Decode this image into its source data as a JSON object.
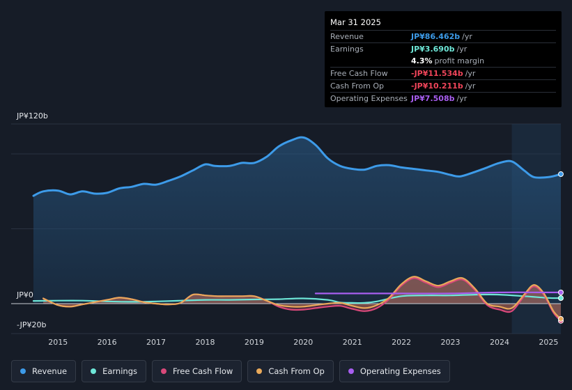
{
  "tooltip": {
    "date": "Mar 31 2025",
    "rows": [
      {
        "label": "Revenue",
        "value": "JP¥86.462b",
        "unit": "/yr",
        "color": "#3d9be9"
      },
      {
        "label": "Earnings",
        "value": "JP¥3.690b",
        "unit": "/yr",
        "color": "#6ee7d8"
      },
      {
        "label": "",
        "value": "4.3%",
        "unit": "profit margin",
        "color": "#ffffff"
      },
      {
        "label": "Free Cash Flow",
        "value": "-JP¥11.534b",
        "unit": "/yr",
        "color": "#f0455a"
      },
      {
        "label": "Cash From Op",
        "value": "-JP¥10.211b",
        "unit": "/yr",
        "color": "#f0455a"
      },
      {
        "label": "Operating Expenses",
        "value": "JP¥7.508b",
        "unit": "/yr",
        "color": "#a85ef0"
      }
    ]
  },
  "legend": [
    {
      "label": "Revenue",
      "color": "#3d9be9"
    },
    {
      "label": "Earnings",
      "color": "#6ee7d8"
    },
    {
      "label": "Free Cash Flow",
      "color": "#d9497a"
    },
    {
      "label": "Cash From Op",
      "color": "#e9a95a"
    },
    {
      "label": "Operating Expenses",
      "color": "#a85ef0"
    }
  ],
  "chart_data": {
    "type": "line",
    "title": "",
    "ylabel_top": "JP¥120b",
    "ylabel_zero": "JP¥0",
    "ylabel_bottom": "-JP¥20b",
    "ylim": [
      -20,
      120
    ],
    "xlim": [
      2014.5,
      2025.25
    ],
    "forecast_start": 2024.25,
    "x_ticks": [
      "2015",
      "2016",
      "2017",
      "2018",
      "2019",
      "2020",
      "2021",
      "2022",
      "2023",
      "2024",
      "2025"
    ],
    "series": [
      {
        "name": "Revenue",
        "color": "#3d9be9",
        "area": true,
        "points": [
          [
            2014.5,
            72
          ],
          [
            2014.7,
            75
          ],
          [
            2015.0,
            75.5
          ],
          [
            2015.25,
            73
          ],
          [
            2015.5,
            75
          ],
          [
            2015.75,
            73.5
          ],
          [
            2016.0,
            74
          ],
          [
            2016.25,
            77
          ],
          [
            2016.5,
            78
          ],
          [
            2016.75,
            80
          ],
          [
            2017.0,
            79.5
          ],
          [
            2017.25,
            82
          ],
          [
            2017.5,
            85
          ],
          [
            2017.75,
            89
          ],
          [
            2018.0,
            93
          ],
          [
            2018.2,
            92
          ],
          [
            2018.5,
            92
          ],
          [
            2018.75,
            94
          ],
          [
            2019.0,
            94
          ],
          [
            2019.25,
            98
          ],
          [
            2019.5,
            105
          ],
          [
            2019.75,
            109
          ],
          [
            2020.0,
            111
          ],
          [
            2020.25,
            106
          ],
          [
            2020.5,
            97
          ],
          [
            2020.75,
            92
          ],
          [
            2021.0,
            90
          ],
          [
            2021.25,
            89.5
          ],
          [
            2021.5,
            92
          ],
          [
            2021.75,
            92.5
          ],
          [
            2022.0,
            91
          ],
          [
            2022.25,
            90
          ],
          [
            2022.5,
            89
          ],
          [
            2022.75,
            88
          ],
          [
            2023.0,
            86
          ],
          [
            2023.2,
            85
          ],
          [
            2023.5,
            88
          ],
          [
            2023.75,
            91
          ],
          [
            2024.0,
            94
          ],
          [
            2024.25,
            95
          ],
          [
            2024.5,
            89
          ],
          [
            2024.7,
            84.5
          ],
          [
            2025.0,
            84.5
          ],
          [
            2025.25,
            86.5
          ]
        ]
      },
      {
        "name": "Earnings",
        "color": "#6ee7d8",
        "area": false,
        "points": [
          [
            2014.5,
            1.8
          ],
          [
            2015.0,
            2
          ],
          [
            2015.5,
            2
          ],
          [
            2016.0,
            1.5
          ],
          [
            2016.5,
            1.2
          ],
          [
            2017.0,
            1.5
          ],
          [
            2017.5,
            2
          ],
          [
            2018.0,
            2.5
          ],
          [
            2018.5,
            2.5
          ],
          [
            2019.0,
            2.8
          ],
          [
            2019.5,
            3
          ],
          [
            2020.0,
            3.5
          ],
          [
            2020.5,
            2.5
          ],
          [
            2020.75,
            0.8
          ],
          [
            2021.0,
            0.5
          ],
          [
            2021.25,
            0.5
          ],
          [
            2021.5,
            1.5
          ],
          [
            2022.0,
            5
          ],
          [
            2022.5,
            5.5
          ],
          [
            2023.0,
            5.5
          ],
          [
            2023.5,
            6
          ],
          [
            2024.0,
            6
          ],
          [
            2024.5,
            5
          ],
          [
            2025.0,
            3.8
          ],
          [
            2025.25,
            3.7
          ]
        ]
      },
      {
        "name": "Free Cash Flow",
        "color": "#d9497a",
        "area": true,
        "points": [
          [
            2014.7,
            3.5
          ],
          [
            2015.0,
            -1
          ],
          [
            2015.25,
            -2
          ],
          [
            2015.5,
            -0.5
          ],
          [
            2016.0,
            2.5
          ],
          [
            2016.25,
            4
          ],
          [
            2016.5,
            3
          ],
          [
            2016.75,
            1
          ],
          [
            2017.0,
            0
          ],
          [
            2017.25,
            -0.5
          ],
          [
            2017.5,
            0.5
          ],
          [
            2017.75,
            6
          ],
          [
            2018.0,
            5.5
          ],
          [
            2018.25,
            5
          ],
          [
            2018.5,
            5
          ],
          [
            2018.75,
            5
          ],
          [
            2019.0,
            5
          ],
          [
            2019.25,
            2
          ],
          [
            2019.5,
            -2
          ],
          [
            2019.75,
            -4
          ],
          [
            2020.0,
            -4
          ],
          [
            2020.25,
            -3
          ],
          [
            2020.5,
            -2
          ],
          [
            2020.75,
            -1.5
          ],
          [
            2021.0,
            -3.5
          ],
          [
            2021.25,
            -5
          ],
          [
            2021.5,
            -3
          ],
          [
            2021.75,
            3
          ],
          [
            2022.0,
            12
          ],
          [
            2022.25,
            17
          ],
          [
            2022.5,
            14
          ],
          [
            2022.75,
            11
          ],
          [
            2023.0,
            14
          ],
          [
            2023.25,
            16
          ],
          [
            2023.5,
            9
          ],
          [
            2023.75,
            -1
          ],
          [
            2024.0,
            -4
          ],
          [
            2024.25,
            -5
          ],
          [
            2024.5,
            5
          ],
          [
            2024.7,
            11.5
          ],
          [
            2024.9,
            6
          ],
          [
            2025.1,
            -6
          ],
          [
            2025.25,
            -11.5
          ]
        ]
      },
      {
        "name": "Cash From Op",
        "color": "#e9a95a",
        "area": true,
        "points": [
          [
            2014.7,
            3.5
          ],
          [
            2015.0,
            -1
          ],
          [
            2015.25,
            -2
          ],
          [
            2015.5,
            -0.5
          ],
          [
            2016.0,
            2.5
          ],
          [
            2016.25,
            4
          ],
          [
            2016.5,
            3
          ],
          [
            2016.75,
            1
          ],
          [
            2017.0,
            0
          ],
          [
            2017.25,
            -0.5
          ],
          [
            2017.5,
            0.5
          ],
          [
            2017.75,
            6
          ],
          [
            2018.0,
            5.5
          ],
          [
            2018.25,
            5
          ],
          [
            2018.5,
            5
          ],
          [
            2018.75,
            5
          ],
          [
            2019.0,
            5
          ],
          [
            2019.25,
            2
          ],
          [
            2019.5,
            -1
          ],
          [
            2019.75,
            -2
          ],
          [
            2020.0,
            -2
          ],
          [
            2020.25,
            -1
          ],
          [
            2020.5,
            0
          ],
          [
            2020.75,
            0.5
          ],
          [
            2021.0,
            -1.5
          ],
          [
            2021.25,
            -3
          ],
          [
            2021.5,
            -1
          ],
          [
            2021.75,
            4
          ],
          [
            2022.0,
            13
          ],
          [
            2022.25,
            18
          ],
          [
            2022.5,
            15
          ],
          [
            2022.75,
            12
          ],
          [
            2023.0,
            15
          ],
          [
            2023.25,
            17
          ],
          [
            2023.5,
            10
          ],
          [
            2023.75,
            0
          ],
          [
            2024.0,
            -2
          ],
          [
            2024.25,
            -3
          ],
          [
            2024.5,
            6
          ],
          [
            2024.7,
            12.5
          ],
          [
            2024.9,
            7
          ],
          [
            2025.1,
            -5
          ],
          [
            2025.25,
            -10.2
          ]
        ]
      },
      {
        "name": "Operating Expenses",
        "color": "#a85ef0",
        "area": false,
        "points": [
          [
            2020.25,
            6.8
          ],
          [
            2021.0,
            6.8
          ],
          [
            2022.0,
            6.8
          ],
          [
            2023.0,
            6.8
          ],
          [
            2024.0,
            7.5
          ],
          [
            2025.0,
            7.5
          ],
          [
            2025.25,
            7.5
          ]
        ]
      }
    ]
  }
}
